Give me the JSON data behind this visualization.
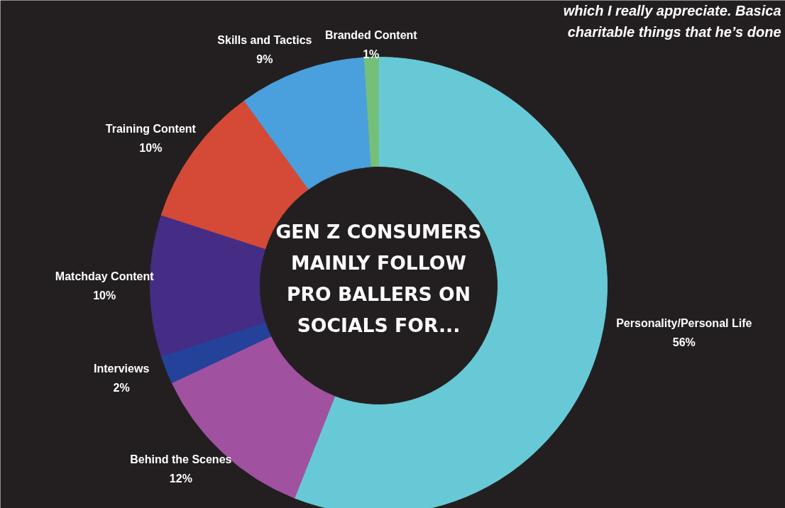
{
  "chart_data": {
    "type": "donut",
    "title": "GEN Z CONSUMERS MAINLY FOLLOW PRO BALLERS ON SOCIALS FOR...",
    "categories": [
      "Personality/Personal Life",
      "Behind the Scenes",
      "Interviews",
      "Matchday Content",
      "Training Content",
      "Skills and Tactics",
      "Branded Content"
    ],
    "values": [
      56,
      12,
      2,
      10,
      10,
      9,
      1
    ],
    "colors": [
      "#68c9d6",
      "#a052a0",
      "#25429a",
      "#452d86",
      "#d44a37",
      "#4aa0dc",
      "#74c07b"
    ],
    "value_labels": [
      "56%",
      "12%",
      "2%",
      "10%",
      "10%",
      "9%",
      "1%"
    ],
    "annotations": [
      "which I really appreciate. Basica",
      "charitable things that he’s done"
    ]
  }
}
